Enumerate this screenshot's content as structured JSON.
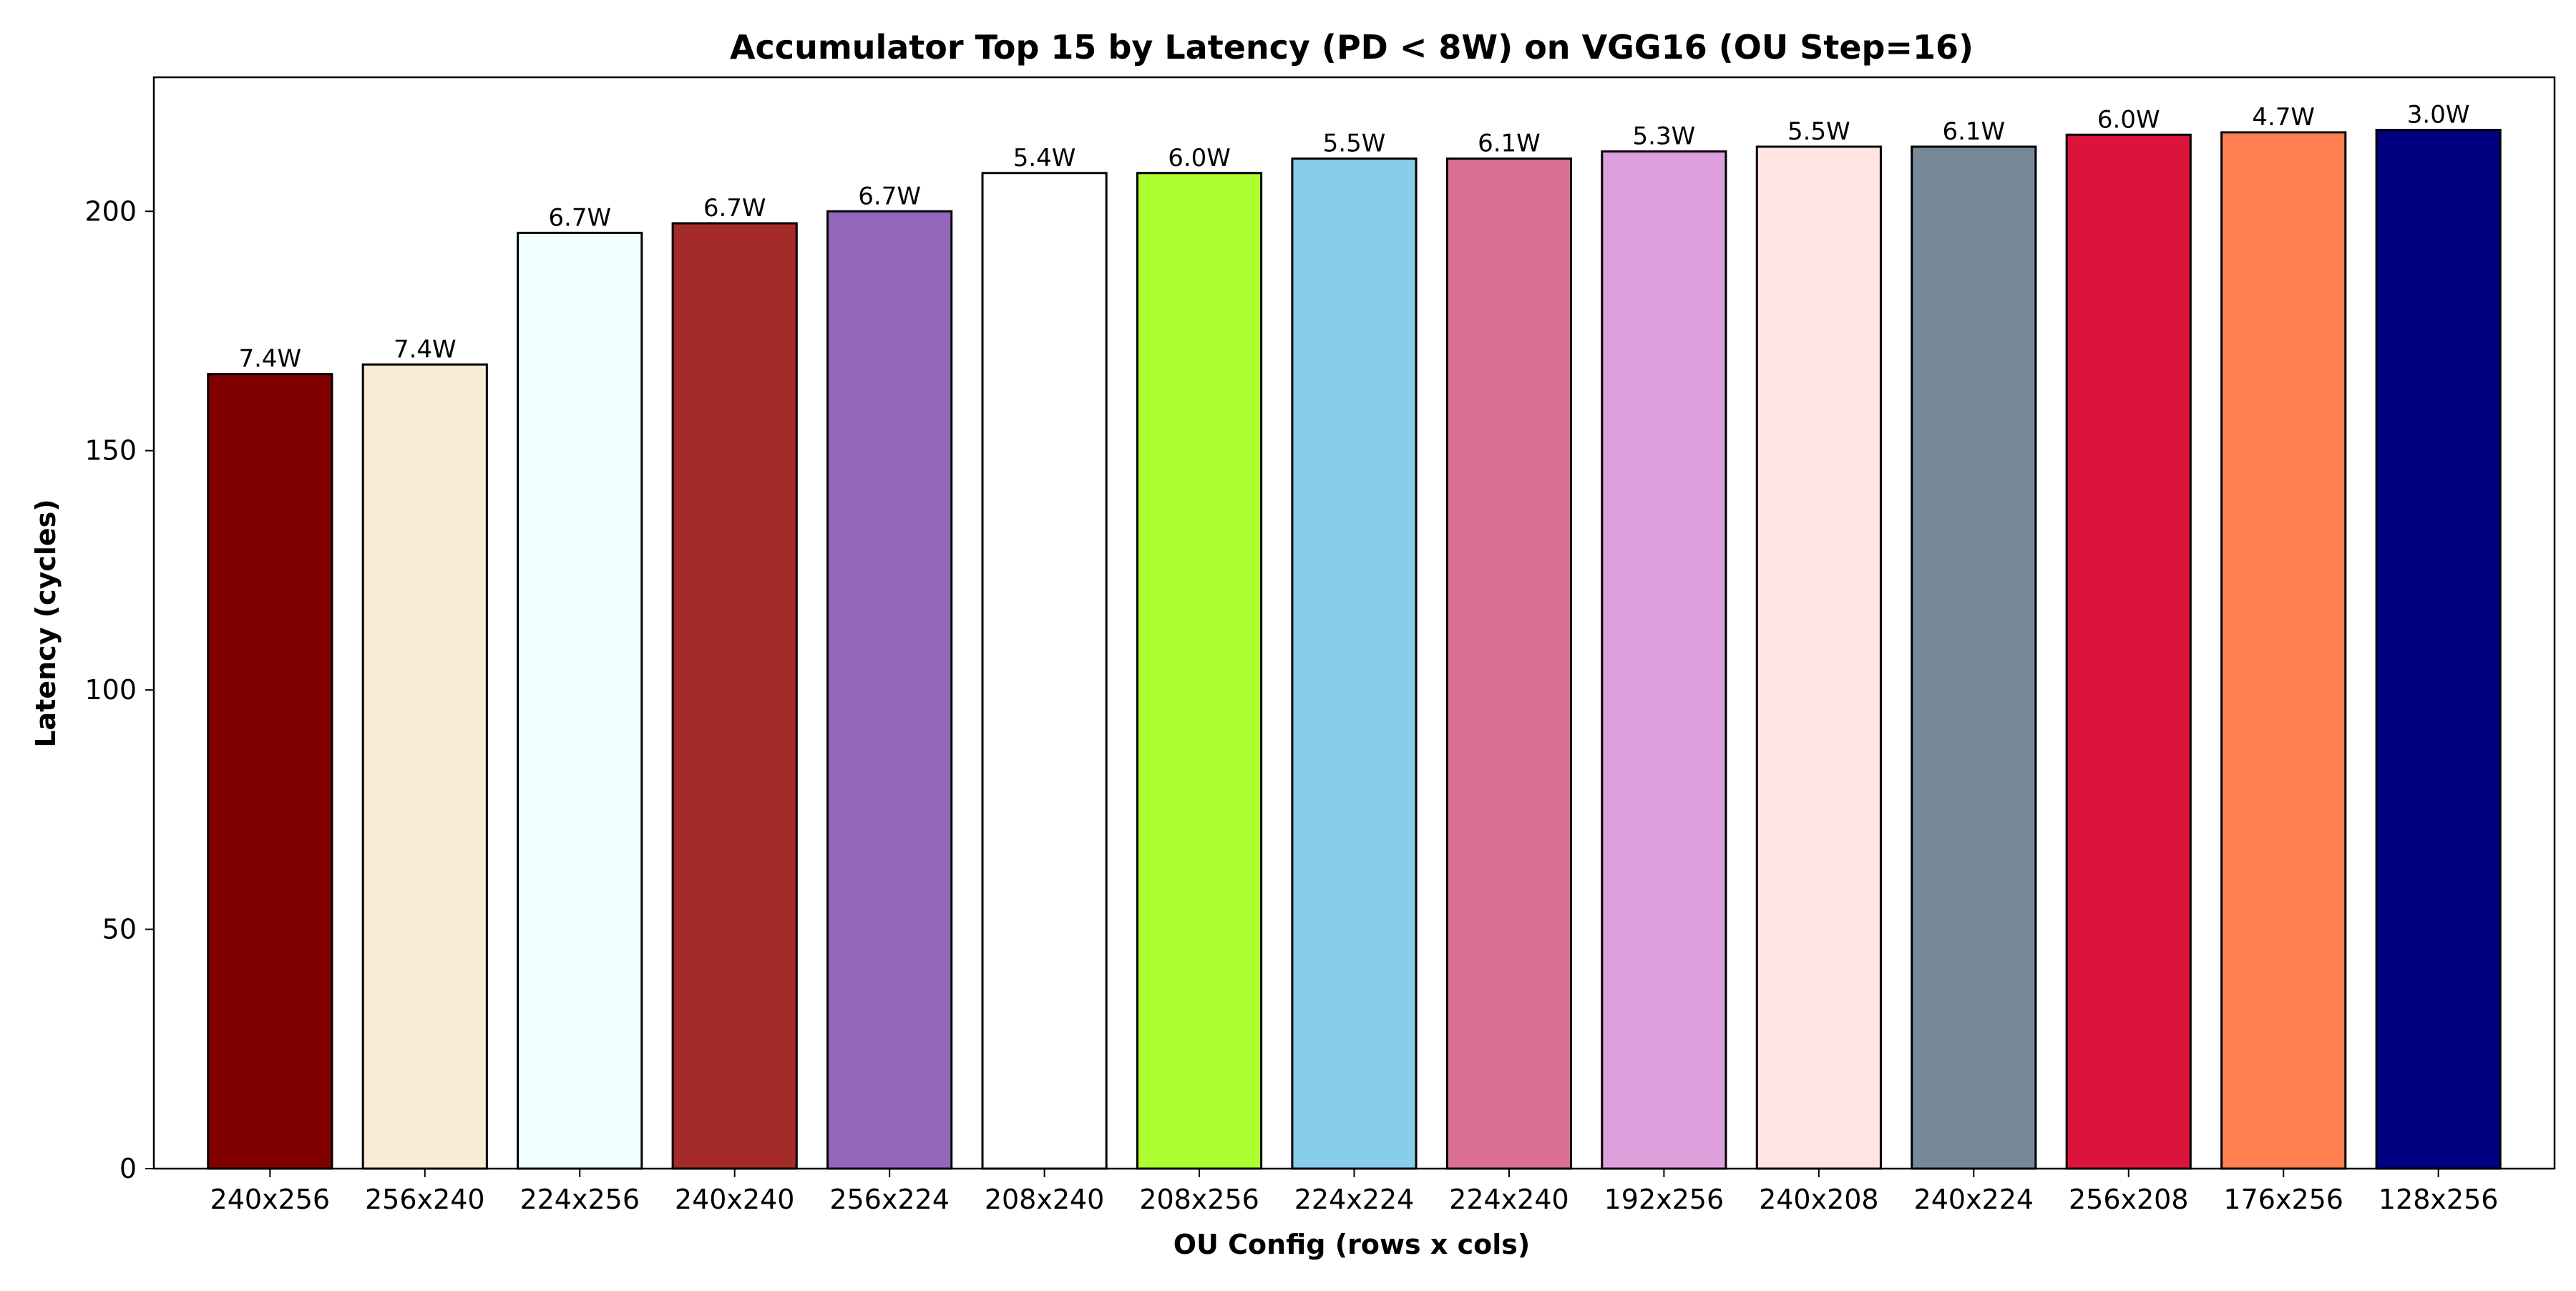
{
  "chart_data": {
    "type": "bar",
    "title": "Accumulator Top 15 by Latency (PD < 8W) on VGG16 (OU Step=16)",
    "xlabel": "OU Config (rows x cols)",
    "ylabel": "Latency (cycles)",
    "ylim": [
      0,
      228
    ],
    "yticks": [
      0,
      50,
      100,
      150,
      200
    ],
    "grid": false,
    "legend": "none",
    "categories": [
      "240x256",
      "256x240",
      "224x256",
      "240x240",
      "256x224",
      "208x240",
      "208x256",
      "224x224",
      "224x240",
      "192x256",
      "240x208",
      "240x224",
      "256x208",
      "176x256",
      "128x256"
    ],
    "values": [
      166,
      168,
      195.5,
      197.5,
      200,
      208,
      208,
      211,
      211,
      212.5,
      213.5,
      213.5,
      216,
      216.5,
      217
    ],
    "data_labels": [
      "7.4W",
      "7.4W",
      "6.7W",
      "6.7W",
      "6.7W",
      "5.4W",
      "6.0W",
      "5.5W",
      "6.1W",
      "5.3W",
      "5.5W",
      "6.1W",
      "6.0W",
      "4.7W",
      "3.0W"
    ],
    "colors": [
      "#800000",
      "#faebd7",
      "#f0ffff",
      "#a52a2a",
      "#9467bd",
      "#ffffff",
      "#adff2f",
      "#87ceeb",
      "#db7093",
      "#dda0dd",
      "#ffe4e1",
      "#778899",
      "#dc143c",
      "#ff7f50",
      "#000080"
    ],
    "edge_color": "#000000"
  }
}
